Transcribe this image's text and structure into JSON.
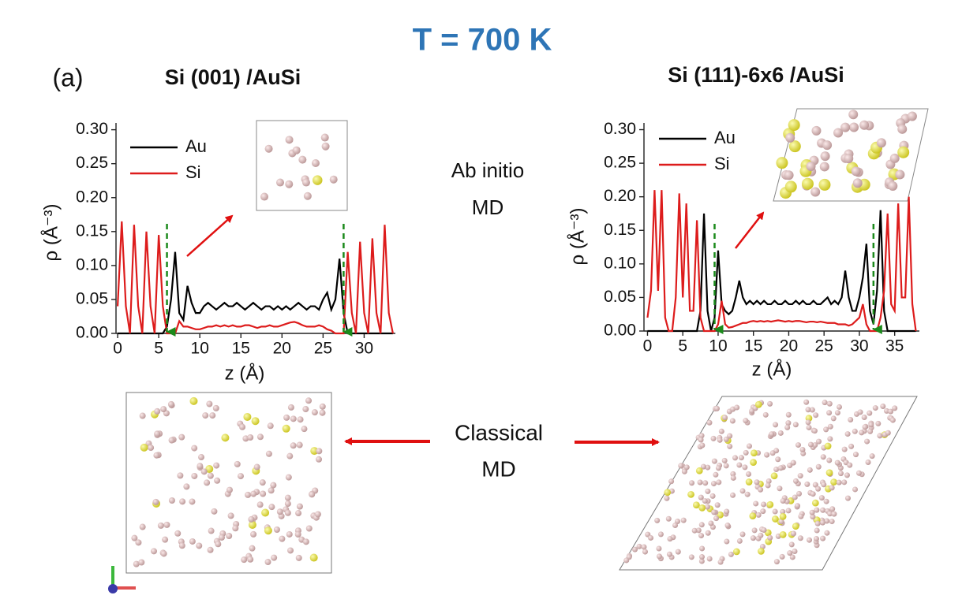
{
  "header": {
    "title": "T = 700 K",
    "panel_label": "(a)"
  },
  "annotations": {
    "ab_initio": [
      "Ab initio",
      "MD"
    ],
    "classical": [
      "Classical",
      "MD"
    ]
  },
  "chart_data": [
    {
      "type": "line",
      "title": "Si (001) /AuSi",
      "x_label": "z (Å)",
      "y_label": "ρ (Å⁻³)",
      "xlim": [
        -0.2,
        33.8
      ],
      "ylim": [
        0,
        0.31
      ],
      "xticks": [
        0,
        5,
        10,
        15,
        20,
        25,
        30
      ],
      "yticks": [
        {
          "value": 0,
          "label": "0.00"
        },
        {
          "value": 0.05,
          "label": "0.05"
        },
        {
          "value": 0.1,
          "label": "0.10"
        },
        {
          "value": 0.15,
          "label": "0.15"
        },
        {
          "value": 0.2,
          "label": "0.20"
        },
        {
          "value": 0.25,
          "label": "0.25"
        },
        {
          "value": 0.3,
          "label": "0.30"
        }
      ],
      "interface_markers": [
        6,
        27.5
      ],
      "x": [
        0,
        0.5,
        1,
        1.5,
        2,
        2.5,
        3,
        3.5,
        4,
        4.5,
        5,
        5.5,
        6,
        6.5,
        7,
        7.5,
        8,
        8.5,
        9,
        9.5,
        10,
        10.5,
        11,
        11.5,
        12,
        12.5,
        13,
        13.5,
        14,
        14.5,
        15,
        15.5,
        16,
        16.5,
        17,
        17.5,
        18,
        18.5,
        19,
        19.5,
        20,
        20.5,
        21,
        21.5,
        22,
        22.5,
        23,
        23.5,
        24,
        24.5,
        25,
        25.5,
        26,
        26.5,
        27,
        27.5,
        28,
        28.5,
        29,
        29.5,
        30,
        30.5,
        31,
        31.5,
        32,
        32.5,
        33,
        33.5
      ],
      "series": [
        {
          "name": "Au",
          "color": "#000000",
          "values": [
            0,
            0,
            0,
            0,
            0,
            0,
            0,
            0,
            0,
            0,
            0,
            0,
            0.01,
            0.05,
            0.12,
            0.03,
            0.02,
            0.07,
            0.045,
            0.03,
            0.03,
            0.04,
            0.045,
            0.04,
            0.035,
            0.04,
            0.045,
            0.04,
            0.04,
            0.045,
            0.04,
            0.035,
            0.04,
            0.045,
            0.04,
            0.035,
            0.04,
            0.04,
            0.035,
            0.04,
            0.035,
            0.04,
            0.035,
            0.04,
            0.045,
            0.04,
            0.035,
            0.04,
            0.04,
            0.035,
            0.05,
            0.06,
            0.035,
            0.05,
            0.11,
            0.03,
            0,
            0,
            0,
            0,
            0,
            0,
            0,
            0,
            0,
            0,
            0,
            0
          ]
        },
        {
          "name": "Si",
          "color": "#dd1c1c",
          "values": [
            0.04,
            0.165,
            0.04,
            0,
            0.16,
            0.04,
            0,
            0.15,
            0.04,
            0,
            0.145,
            0.04,
            0,
            0,
            0,
            0.018,
            0.01,
            0.01,
            0.008,
            0.006,
            0.006,
            0.008,
            0.01,
            0.01,
            0.012,
            0.01,
            0.012,
            0.01,
            0.012,
            0.01,
            0.01,
            0.012,
            0.012,
            0.01,
            0.008,
            0.01,
            0.01,
            0.012,
            0.01,
            0.01,
            0.012,
            0.014,
            0.016,
            0.017,
            0.015,
            0.012,
            0.01,
            0.01,
            0.01,
            0.012,
            0.01,
            0.006,
            0.004,
            0,
            0,
            0,
            0.12,
            0.03,
            0,
            0.135,
            0.03,
            0,
            0.14,
            0.03,
            0,
            0.16,
            0.03,
            0
          ]
        }
      ]
    },
    {
      "type": "line",
      "title": "Si (111)-6x6 /AuSi",
      "x_label": "z (Å)",
      "y_label": "ρ (Å⁻³)",
      "xlim": [
        -0.5,
        38.5
      ],
      "ylim": [
        0,
        0.31
      ],
      "xticks": [
        0,
        5,
        10,
        15,
        20,
        25,
        30,
        35
      ],
      "yticks": [
        {
          "value": 0,
          "label": "0.00"
        },
        {
          "value": 0.05,
          "label": "0.05"
        },
        {
          "value": 0.1,
          "label": "0.10"
        },
        {
          "value": 0.15,
          "label": "0.15"
        },
        {
          "value": 0.2,
          "label": "0.20"
        },
        {
          "value": 0.25,
          "label": "0.25"
        },
        {
          "value": 0.3,
          "label": "0.30"
        }
      ],
      "interface_markers": [
        9.5,
        32
      ],
      "x": [
        0,
        0.5,
        1,
        1.5,
        2,
        2.5,
        3,
        3.5,
        4,
        4.5,
        5,
        5.5,
        6,
        6.5,
        7,
        7.5,
        8,
        8.5,
        9,
        9.5,
        10,
        10.5,
        11,
        11.5,
        12,
        12.5,
        13,
        13.5,
        14,
        14.5,
        15,
        15.5,
        16,
        16.5,
        17,
        17.5,
        18,
        18.5,
        19,
        19.5,
        20,
        20.5,
        21,
        21.5,
        22,
        22.5,
        23,
        23.5,
        24,
        24.5,
        25,
        25.5,
        26,
        26.5,
        27,
        27.5,
        28,
        28.5,
        29,
        29.5,
        30,
        30.5,
        31,
        31.5,
        32,
        32.5,
        33,
        33.5,
        34,
        34.5,
        35,
        35.5,
        36,
        36.5,
        37,
        37.5,
        38
      ],
      "series": [
        {
          "name": "Au",
          "color": "#000000",
          "values": [
            0,
            0,
            0,
            0,
            0,
            0,
            0,
            0,
            0,
            0,
            0,
            0,
            0,
            0,
            0,
            0.03,
            0.175,
            0.03,
            0,
            0.02,
            0.12,
            0.04,
            0.03,
            0.025,
            0.03,
            0.05,
            0.075,
            0.05,
            0.04,
            0.045,
            0.04,
            0.045,
            0.04,
            0.045,
            0.04,
            0.04,
            0.045,
            0.04,
            0.04,
            0.045,
            0.04,
            0.04,
            0.045,
            0.04,
            0.045,
            0.04,
            0.04,
            0.045,
            0.04,
            0.04,
            0.045,
            0.05,
            0.04,
            0.045,
            0.04,
            0.05,
            0.09,
            0.05,
            0.03,
            0.03,
            0.05,
            0.08,
            0.13,
            0.03,
            0.01,
            0.06,
            0.18,
            0.03,
            0,
            0,
            0,
            0,
            0,
            0,
            0,
            0,
            0
          ]
        },
        {
          "name": "Si",
          "color": "#dd1c1c",
          "values": [
            0.02,
            0.06,
            0.21,
            0.06,
            0.21,
            0.02,
            0,
            0,
            0.05,
            0.205,
            0.05,
            0.19,
            0.03,
            0.03,
            0.165,
            0.02,
            0,
            0,
            0,
            0,
            0.01,
            0.045,
            0.01,
            0.005,
            0.006,
            0.008,
            0.01,
            0.012,
            0.012,
            0.014,
            0.015,
            0.014,
            0.015,
            0.014,
            0.015,
            0.014,
            0.015,
            0.016,
            0.015,
            0.014,
            0.015,
            0.014,
            0.015,
            0.015,
            0.014,
            0.013,
            0.014,
            0.014,
            0.013,
            0.014,
            0.013,
            0.012,
            0.012,
            0.012,
            0.01,
            0.01,
            0.01,
            0.008,
            0.01,
            0.015,
            0.02,
            0.04,
            0.01,
            0,
            0,
            0,
            0.02,
            0.06,
            0.175,
            0.04,
            0.03,
            0.19,
            0.05,
            0.05,
            0.2,
            0.04,
            0
          ]
        }
      ]
    }
  ]
}
